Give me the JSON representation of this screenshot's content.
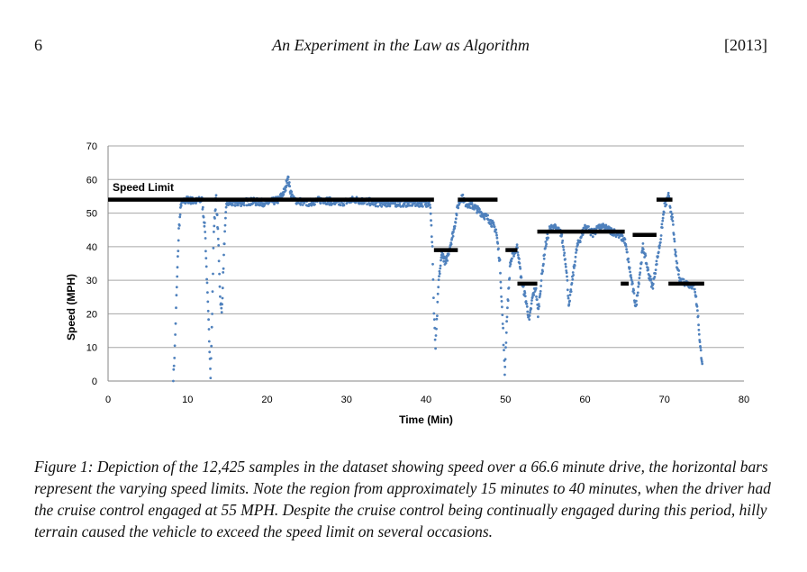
{
  "header": {
    "page_number": "6",
    "title": "An Experiment in the Law as Algorithm",
    "year": "[2013]"
  },
  "caption": " Figure 1: Depiction of the 12,425 samples in the dataset showing speed over a 66.6 minute drive, the horizontal bars represent the varying speed limits.  Note the region from approximately 15 minutes to 40 minutes, when the driver had the cruise control engaged at 55 MPH.  Despite the cruise control being continually engaged during this period, hilly terrain caused the vehicle to exceed the speed limit on several occasions.",
  "chart_data": {
    "type": "scatter",
    "title": "",
    "xlabel": "Time (Min)",
    "ylabel": "Speed (MPH)",
    "xlim": [
      0,
      80
    ],
    "ylim": [
      0,
      70
    ],
    "xticks": [
      0,
      10,
      20,
      30,
      40,
      50,
      60,
      70,
      80
    ],
    "yticks": [
      0,
      10,
      20,
      30,
      40,
      50,
      60,
      70
    ],
    "grid": "horizontal",
    "annotation": "Speed Limit",
    "point_color": "#4f81bd",
    "bar_color": "#000000",
    "speed_profile": [
      [
        8.2,
        0
      ],
      [
        8.4,
        10
      ],
      [
        8.6,
        25
      ],
      [
        8.9,
        45
      ],
      [
        9.2,
        53
      ],
      [
        10,
        54
      ],
      [
        11,
        53.5
      ],
      [
        11.8,
        54
      ],
      [
        12.2,
        45
      ],
      [
        12.6,
        20
      ],
      [
        12.9,
        2
      ],
      [
        13.1,
        20
      ],
      [
        13.3,
        45
      ],
      [
        13.6,
        55
      ],
      [
        13.9,
        40
      ],
      [
        14.1,
        25
      ],
      [
        14.3,
        20
      ],
      [
        14.6,
        40
      ],
      [
        14.9,
        53
      ],
      [
        16,
        53
      ],
      [
        18,
        53.5
      ],
      [
        20,
        53
      ],
      [
        21.5,
        54
      ],
      [
        22.3,
        57
      ],
      [
        22.6,
        61
      ],
      [
        22.9,
        57
      ],
      [
        23.3,
        54
      ],
      [
        25,
        53
      ],
      [
        27,
        54
      ],
      [
        29,
        53
      ],
      [
        31,
        54
      ],
      [
        34,
        53
      ],
      [
        37,
        53
      ],
      [
        40.5,
        53
      ],
      [
        40.8,
        40
      ],
      [
        41,
        20
      ],
      [
        41.2,
        10
      ],
      [
        41.4,
        20
      ],
      [
        41.6,
        30
      ],
      [
        42,
        38
      ],
      [
        42.5,
        35
      ],
      [
        43,
        40
      ],
      [
        43.5,
        45
      ],
      [
        44,
        52
      ],
      [
        44.5,
        55
      ],
      [
        45,
        53
      ],
      [
        46,
        52
      ],
      [
        47,
        50
      ],
      [
        48,
        48
      ],
      [
        48.8,
        45
      ],
      [
        49.3,
        35
      ],
      [
        49.7,
        15
      ],
      [
        49.9,
        2
      ],
      [
        50.2,
        20
      ],
      [
        50.6,
        35
      ],
      [
        51,
        38
      ],
      [
        51.5,
        40
      ],
      [
        52,
        30
      ],
      [
        52.5,
        25
      ],
      [
        53,
        18
      ],
      [
        53.4,
        25
      ],
      [
        53.8,
        28
      ],
      [
        54.1,
        20
      ],
      [
        54.5,
        30
      ],
      [
        55,
        40
      ],
      [
        55.5,
        45
      ],
      [
        56,
        46
      ],
      [
        57,
        44
      ],
      [
        57.6,
        35
      ],
      [
        58,
        22
      ],
      [
        58.4,
        30
      ],
      [
        59,
        40
      ],
      [
        60,
        46
      ],
      [
        61,
        44
      ],
      [
        62,
        46
      ],
      [
        63,
        45
      ],
      [
        64,
        44
      ],
      [
        65,
        42
      ],
      [
        65.5,
        35
      ],
      [
        66,
        28
      ],
      [
        66.4,
        22
      ],
      [
        66.8,
        30
      ],
      [
        67.3,
        40
      ],
      [
        68,
        32
      ],
      [
        68.5,
        28
      ],
      [
        69,
        35
      ],
      [
        69.5,
        42
      ],
      [
        70,
        52
      ],
      [
        70.5,
        55
      ],
      [
        71,
        48
      ],
      [
        71.5,
        35
      ],
      [
        72,
        30
      ],
      [
        73,
        29
      ],
      [
        73.8,
        28
      ],
      [
        74.2,
        20
      ],
      [
        74.5,
        10
      ],
      [
        74.8,
        5
      ]
    ],
    "speed_limits": [
      {
        "x0": 0,
        "x1": 41,
        "y": 54
      },
      {
        "x0": 41,
        "x1": 44,
        "y": 39
      },
      {
        "x0": 44,
        "x1": 49,
        "y": 54
      },
      {
        "x0": 50,
        "x1": 51.5,
        "y": 39
      },
      {
        "x0": 51.5,
        "x1": 54,
        "y": 29
      },
      {
        "x0": 54,
        "x1": 65,
        "y": 44.5
      },
      {
        "x0": 64.5,
        "x1": 65.5,
        "y": 29
      },
      {
        "x0": 66,
        "x1": 69,
        "y": 43.5
      },
      {
        "x0": 69,
        "x1": 71,
        "y": 54
      },
      {
        "x0": 70.5,
        "x1": 75,
        "y": 29
      }
    ]
  }
}
